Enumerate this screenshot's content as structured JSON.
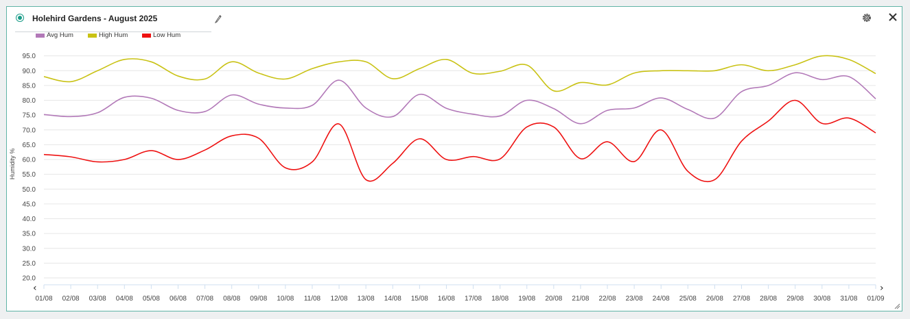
{
  "header": {
    "title": "Holehird Gardens - August 2025"
  },
  "icons": {
    "status": "radio-selected-icon",
    "edit": "pencil-icon",
    "settings": "gear-icon",
    "close": "close-icon",
    "resize": "resize-grip-icon",
    "scroll_left": "chevron-left-icon",
    "scroll_right": "chevron-right-icon"
  },
  "colors": {
    "accent": "#1a9c88",
    "avg_hum": "#b279b8",
    "high_hum": "#c9c214",
    "low_hum": "#ee1111"
  },
  "nav": {
    "left_label": "‹",
    "right_label": "›"
  },
  "chart_data": {
    "type": "line",
    "ylabel": "Humidity %",
    "ylim": [
      20,
      97
    ],
    "yticks": [
      "20.0",
      "25.0",
      "30.0",
      "35.0",
      "40.0",
      "45.0",
      "50.0",
      "55.0",
      "60.0",
      "65.0",
      "70.0",
      "75.0",
      "80.0",
      "85.0",
      "90.0",
      "95.0"
    ],
    "x": [
      "01/08",
      "02/08",
      "03/08",
      "04/08",
      "05/08",
      "06/08",
      "07/08",
      "08/08",
      "09/08",
      "10/08",
      "11/08",
      "12/08",
      "13/08",
      "14/08",
      "15/08",
      "16/08",
      "17/08",
      "18/08",
      "19/08",
      "20/08",
      "21/08",
      "22/08",
      "23/08",
      "24/08",
      "25/08",
      "26/08",
      "27/08",
      "28/08",
      "29/08",
      "30/08",
      "31/08",
      "01/09"
    ],
    "grid": true,
    "legend_position": "top-left",
    "series": [
      {
        "name": "Avg Hum",
        "color": "#b279b8",
        "values": [
          75.2,
          74.5,
          75.8,
          81.0,
          80.7,
          76.6,
          76.2,
          81.8,
          78.7,
          77.4,
          78.3,
          86.8,
          77.4,
          74.5,
          82.0,
          77.3,
          75.3,
          74.7,
          80.0,
          77.2,
          72.1,
          76.6,
          77.4,
          80.8,
          76.9,
          74.0,
          82.9,
          85.0,
          89.3,
          87.0,
          88.0,
          80.5
        ]
      },
      {
        "name": "High Hum",
        "color": "#c9c214",
        "values": [
          88.0,
          86.3,
          90.0,
          93.8,
          93.0,
          88.2,
          87.2,
          93.0,
          89.2,
          87.2,
          90.7,
          93.0,
          93.0,
          87.3,
          90.7,
          93.8,
          89.1,
          89.8,
          91.9,
          83.2,
          86.0,
          85.2,
          89.2,
          90.0,
          90.0,
          90.0,
          92.0,
          90.0,
          92.0,
          95.0,
          93.8,
          89.0
        ]
      },
      {
        "name": "Low Hum",
        "color": "#ee1111",
        "values": [
          61.7,
          60.9,
          59.2,
          60.0,
          63.0,
          60.0,
          63.2,
          68.0,
          67.2,
          57.2,
          59.2,
          72.0,
          53.2,
          58.7,
          67.0,
          60.0,
          61.0,
          60.2,
          71.0,
          71.0,
          60.3,
          66.0,
          59.3,
          70.0,
          56.0,
          53.2,
          66.2,
          73.0,
          80.0,
          72.2,
          74.0,
          69.0
        ]
      }
    ]
  }
}
